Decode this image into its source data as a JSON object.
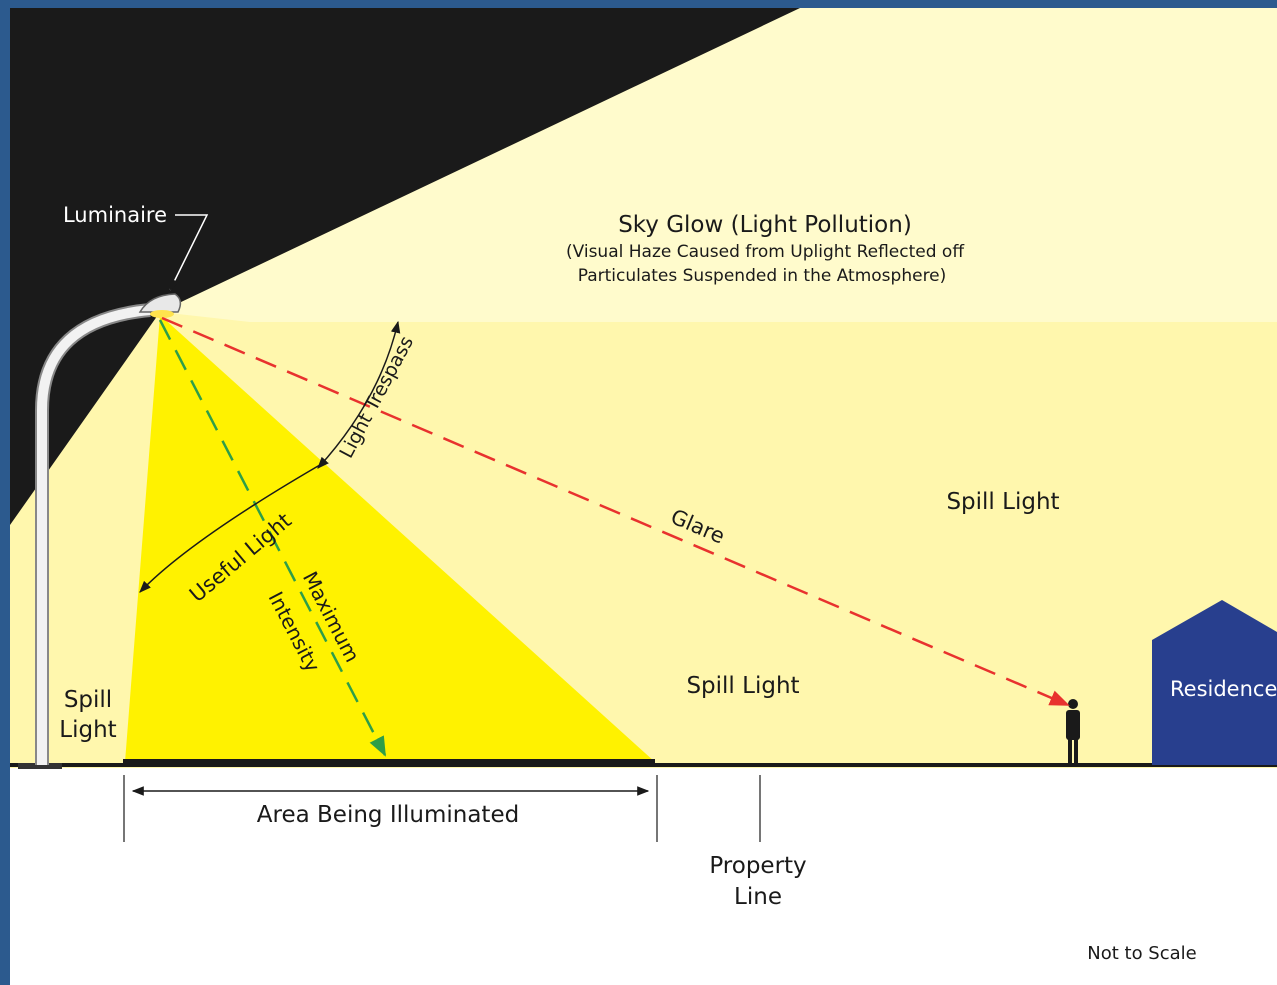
{
  "labels": {
    "luminaire": "Luminaire",
    "sky_glow_title": "Sky Glow (Light Pollution)",
    "sky_glow_note": [
      "(Visual Haze Caused from Uplight Reflected off",
      "Particulates Suspended in the Atmosphere)"
    ],
    "light_trespass": "Light Trespass",
    "useful_light": "Useful Light",
    "maximum_intensity": [
      "Maximum",
      "Intensity"
    ],
    "glare": "Glare",
    "spill_light_right": "Spill Light",
    "spill_light_middle": "Spill Light",
    "spill_light_left": [
      "Spill",
      "Light"
    ],
    "residence": "Residence",
    "area_illuminated": "Area Being Illuminated",
    "property_line": [
      "Property",
      "Line"
    ],
    "not_to_scale": "Not to Scale"
  }
}
